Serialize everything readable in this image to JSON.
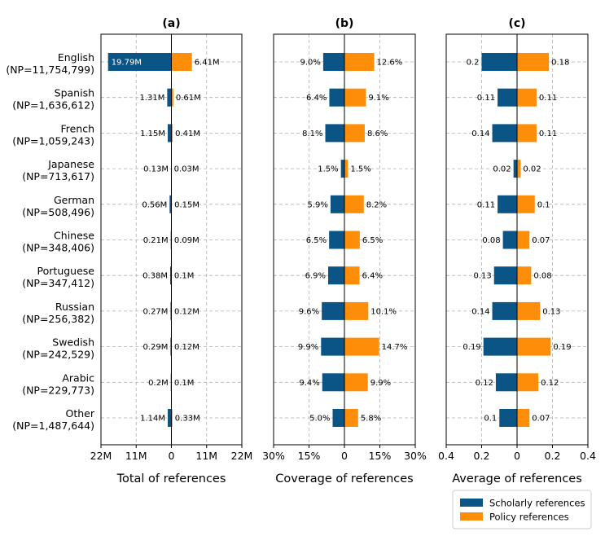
{
  "colors": {
    "scholarly": "#0b5586",
    "policy": "#fe8e0a"
  },
  "legend": {
    "scholarly": "Scholarly references",
    "policy": "Policy references"
  },
  "chart_data": [
    {
      "id": "a",
      "type": "bar",
      "title": "(a)",
      "xlabel": "Total of references",
      "xlim": [
        -22,
        22
      ],
      "xticks": [
        "22M",
        "11M",
        "0",
        "11M",
        "22M"
      ],
      "categories": [
        [
          "English",
          "(NP=11,754,799)"
        ],
        [
          "Spanish",
          "(NP=1,636,612)"
        ],
        [
          "French",
          "(NP=1,059,243)"
        ],
        [
          "Japanese",
          "(NP=713,617)"
        ],
        [
          "German",
          "(NP=508,496)"
        ],
        [
          "Chinese",
          "(NP=348,406)"
        ],
        [
          "Portuguese",
          "(NP=347,412)"
        ],
        [
          "Russian",
          "(NP=256,382)"
        ],
        [
          "Swedish",
          "(NP=242,529)"
        ],
        [
          "Arabic",
          "(NP=229,773)"
        ],
        [
          "Other",
          "(NP=1,487,644)"
        ]
      ],
      "series": [
        {
          "name": "Scholarly references",
          "values": [
            19.79,
            1.31,
            1.15,
            0.13,
            0.56,
            0.21,
            0.38,
            0.27,
            0.29,
            0.2,
            1.14
          ],
          "labels": [
            "19.79M",
            "1.31M",
            "1.15M",
            "0.13M",
            "0.56M",
            "0.21M",
            "0.38M",
            "0.27M",
            "0.29M",
            "0.2M",
            "1.14M"
          ]
        },
        {
          "name": "Policy references",
          "values": [
            6.41,
            0.61,
            0.41,
            0.03,
            0.15,
            0.09,
            0.1,
            0.12,
            0.12,
            0.1,
            0.33
          ],
          "labels": [
            "6.41M",
            "0.61M",
            "0.41M",
            "0.03M",
            "0.15M",
            "0.09M",
            "0.1M",
            "0.12M",
            "0.12M",
            "0.1M",
            "0.33M"
          ]
        }
      ]
    },
    {
      "id": "b",
      "type": "bar",
      "title": "(b)",
      "xlabel": "Coverage of references",
      "xlim": [
        -30,
        30
      ],
      "xticks": [
        "30%",
        "15%",
        "0",
        "15%",
        "30%"
      ],
      "series": [
        {
          "name": "Scholarly references",
          "values": [
            9.0,
            6.4,
            8.1,
            1.5,
            5.9,
            6.5,
            6.9,
            9.6,
            9.9,
            9.4,
            5.0
          ],
          "labels": [
            "9.0%",
            "6.4%",
            "8.1%",
            "1.5%",
            "5.9%",
            "6.5%",
            "6.9%",
            "9.6%",
            "9.9%",
            "9.4%",
            "5.0%"
          ]
        },
        {
          "name": "Policy references",
          "values": [
            12.6,
            9.1,
            8.6,
            1.5,
            8.2,
            6.5,
            6.4,
            10.1,
            14.7,
            9.9,
            5.8
          ],
          "labels": [
            "12.6%",
            "9.1%",
            "8.6%",
            "1.5%",
            "8.2%",
            "6.5%",
            "6.4%",
            "10.1%",
            "14.7%",
            "9.9%",
            "5.8%"
          ]
        }
      ]
    },
    {
      "id": "c",
      "type": "bar",
      "title": "(c)",
      "xlabel": "Average of references",
      "xlim": [
        -0.4,
        0.4
      ],
      "xticks": [
        "0.4",
        "0.2",
        "0",
        "0.2",
        "0.4"
      ],
      "series": [
        {
          "name": "Scholarly references",
          "values": [
            0.2,
            0.11,
            0.14,
            0.02,
            0.11,
            0.08,
            0.13,
            0.14,
            0.19,
            0.12,
            0.1
          ],
          "labels": [
            "0.2",
            "0.11",
            "0.14",
            "0.02",
            "0.11",
            "0.08",
            "0.13",
            "0.14",
            "0.19",
            "0.12",
            "0.1"
          ]
        },
        {
          "name": "Policy references",
          "values": [
            0.18,
            0.11,
            0.11,
            0.02,
            0.1,
            0.07,
            0.08,
            0.13,
            0.19,
            0.12,
            0.07
          ],
          "labels": [
            "0.18",
            "0.11",
            "0.11",
            "0.02",
            "0.1",
            "0.07",
            "0.08",
            "0.13",
            "0.19",
            "0.12",
            "0.07"
          ]
        }
      ]
    }
  ]
}
